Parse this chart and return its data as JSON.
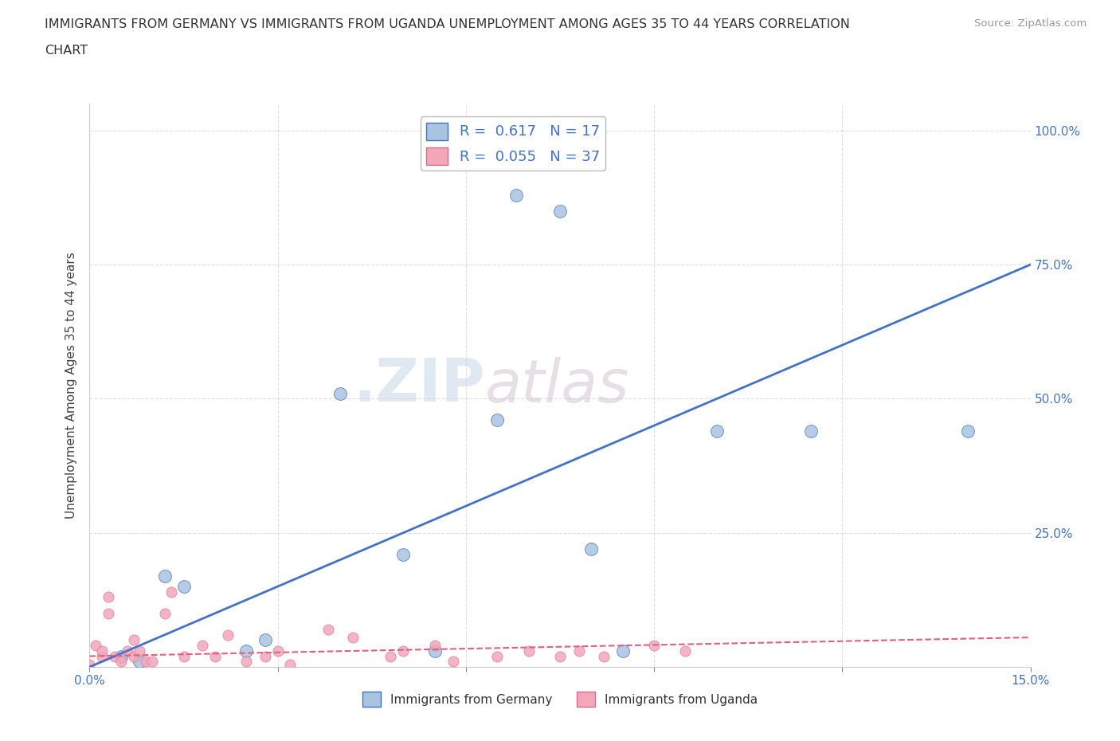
{
  "title_line1": "IMMIGRANTS FROM GERMANY VS IMMIGRANTS FROM UGANDA UNEMPLOYMENT AMONG AGES 35 TO 44 YEARS CORRELATION",
  "title_line2": "CHART",
  "source": "Source: ZipAtlas.com",
  "ylabel": "Unemployment Among Ages 35 to 44 years",
  "xlim": [
    0.0,
    0.15
  ],
  "ylim": [
    0.0,
    1.05
  ],
  "ytick_positions": [
    0.0,
    0.25,
    0.5,
    0.75,
    1.0
  ],
  "ytick_labels": [
    "",
    "25.0%",
    "50.0%",
    "75.0%",
    "100.0%"
  ],
  "R_germany": 0.617,
  "N_germany": 17,
  "R_uganda": 0.055,
  "N_uganda": 37,
  "germany_color": "#a8c4e0",
  "uganda_color": "#f4a7b9",
  "regression_germany_color": "#4472c4",
  "regression_uganda_color": "#e06080",
  "germany_scatter_x": [
    0.005,
    0.008,
    0.012,
    0.015,
    0.025,
    0.028,
    0.04,
    0.05,
    0.055,
    0.065,
    0.068,
    0.075,
    0.08,
    0.085,
    0.1,
    0.115,
    0.14
  ],
  "germany_scatter_y": [
    0.02,
    0.01,
    0.17,
    0.15,
    0.03,
    0.05,
    0.51,
    0.21,
    0.03,
    0.46,
    0.88,
    0.85,
    0.22,
    0.03,
    0.44,
    0.44,
    0.44
  ],
  "uganda_scatter_x": [
    0.0,
    0.001,
    0.002,
    0.002,
    0.003,
    0.003,
    0.004,
    0.005,
    0.006,
    0.007,
    0.007,
    0.008,
    0.009,
    0.01,
    0.012,
    0.013,
    0.015,
    0.018,
    0.02,
    0.022,
    0.025,
    0.028,
    0.03,
    0.032,
    0.038,
    0.042,
    0.048,
    0.05,
    0.055,
    0.058,
    0.065,
    0.07,
    0.075,
    0.078,
    0.082,
    0.09,
    0.095
  ],
  "uganda_scatter_y": [
    0.005,
    0.04,
    0.02,
    0.03,
    0.1,
    0.13,
    0.02,
    0.01,
    0.03,
    0.02,
    0.05,
    0.03,
    0.01,
    0.01,
    0.1,
    0.14,
    0.02,
    0.04,
    0.02,
    0.06,
    0.01,
    0.02,
    0.03,
    0.005,
    0.07,
    0.055,
    0.02,
    0.03,
    0.04,
    0.01,
    0.02,
    0.03,
    0.02,
    0.03,
    0.02,
    0.04,
    0.03
  ],
  "background_color": "#ffffff",
  "grid_color": "#cccccc",
  "watermark_zip": ".ZIP",
  "watermark_atlas": "atlas",
  "legend_germany_label": "Immigrants from Germany",
  "legend_uganda_label": "Immigrants from Uganda"
}
